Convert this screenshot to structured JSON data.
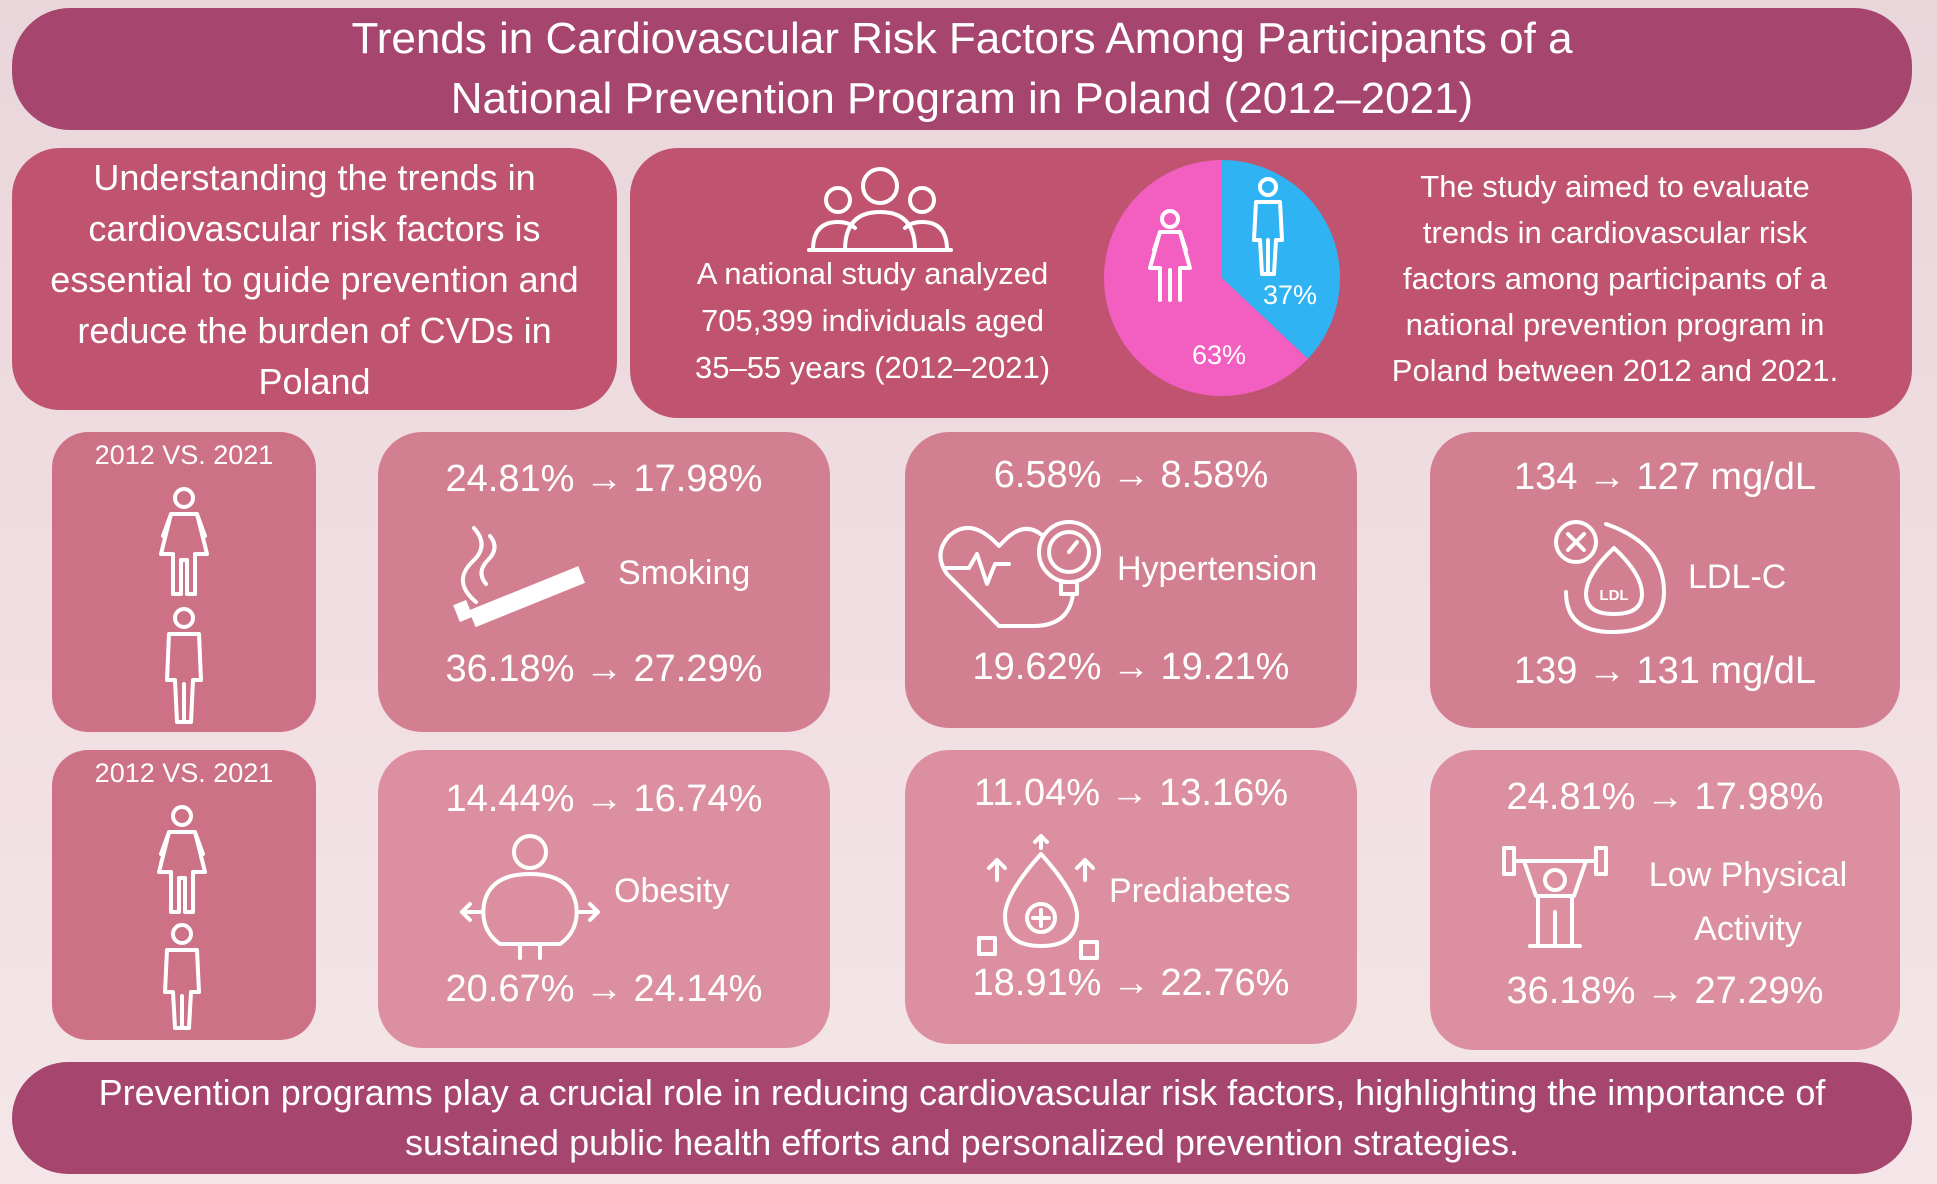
{
  "title": {
    "line1": "Trends in Cardiovascular Risk Factors Among Participants of a",
    "line2": "National Prevention Program in Poland (2012–2021)"
  },
  "intro": {
    "line1": "Understanding the trends in",
    "line2": "cardiovascular risk factors is",
    "line3": "essential to guide prevention and",
    "line4": "reduce the burden of CVDs in",
    "line5": "Poland"
  },
  "study": {
    "line1": "A national study  analyzed",
    "line2": "705,399  individuals aged",
    "line3": "35–55 years (2012–2021)"
  },
  "pie": {
    "female_pct": "63%",
    "male_pct": "37%",
    "female_fraction": 0.63,
    "male_fraction": 0.37,
    "female_color": "#f25fc0",
    "male_color": "#2fb3f2"
  },
  "aim": {
    "line1": "The study aimed to evaluate",
    "line2": "trends in cardiovascular risk",
    "line3": "factors among participants of a",
    "line4": "national prevention program in",
    "line5": "Poland between 2012 and 2021."
  },
  "comparison_label_1": "2012 VS. 2021",
  "comparison_label_2": "2012 VS. 2021",
  "factors": {
    "smoking": {
      "label": "Smoking",
      "female": "24.81% → 17.98%",
      "male": "36.18% → 27.29%",
      "icon": "cigarette-icon"
    },
    "hypertension": {
      "label": "Hypertension",
      "female": "6.58% → 8.58%",
      "male": "19.62% → 19.21%",
      "icon": "heart-pressure-icon"
    },
    "ldl": {
      "label": "LDL-C",
      "female": "134 → 127 mg/dL",
      "male": "139  → 131 mg/dL",
      "icon": "ldl-drop-icon"
    },
    "obesity": {
      "label": "Obesity",
      "female": "14.44% → 16.74%",
      "male": "20.67% → 24.14%",
      "icon": "obese-person-icon"
    },
    "prediabetes": {
      "label": "Prediabetes",
      "female": "11.04% → 13.16%",
      "male": "18.91% → 22.76%",
      "icon": "glucose-drop-icon"
    },
    "activity": {
      "label_line1": "Low Physical",
      "label_line2": "Activity",
      "female": "24.81% → 17.98%",
      "male": "36.18% → 27.29%",
      "icon": "dumbbell-person-icon"
    }
  },
  "footer": {
    "line1": "Prevention programs play a crucial role in reducing cardiovascular risk factors, highlighting the importance of",
    "line2": "sustained public health efforts and personalized prevention strategies."
  },
  "colors": {
    "banner": "#a6466f",
    "panel": "#c05470",
    "card": "#d27f92"
  }
}
